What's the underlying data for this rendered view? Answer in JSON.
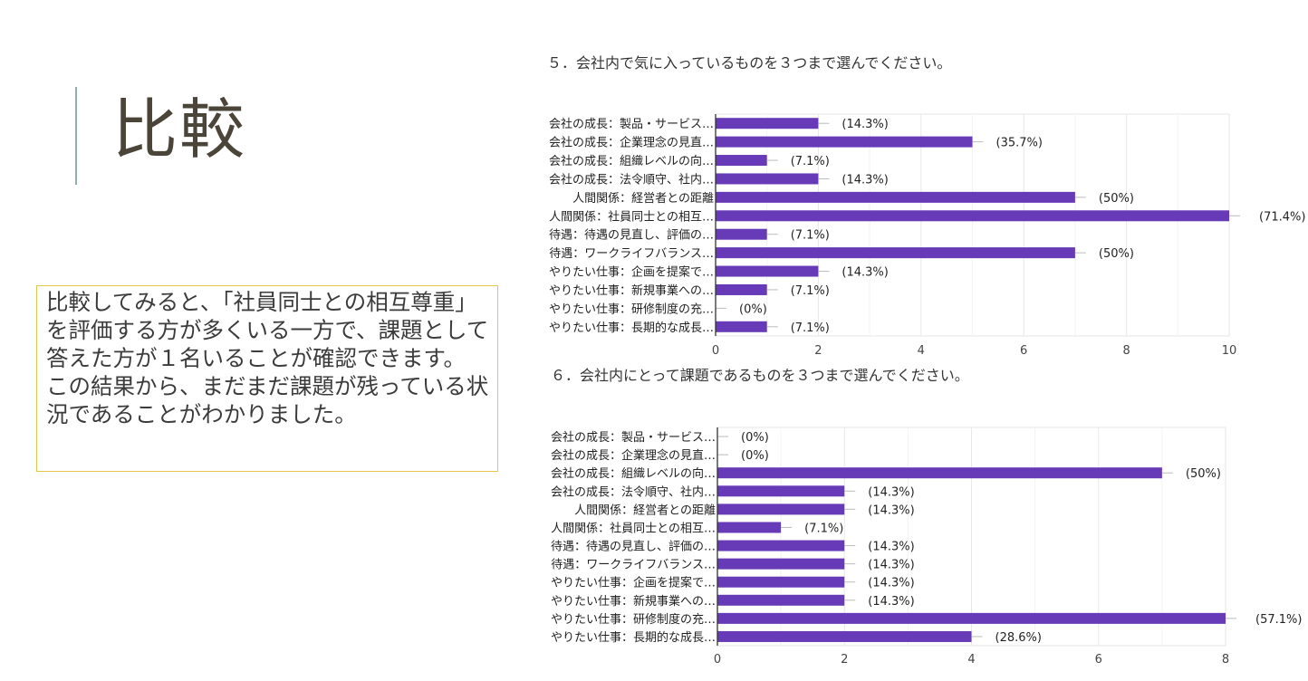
{
  "slide": {
    "title": "比較",
    "note": "比較してみると、「社員同士との相互尊重」を評価する方が多くいる一方で、課題として答えた方が１名いることが確認できます。\nこの結果から、まだまだ課題が残っている状況であることがわかりました。",
    "accent_color": "#8fb0b4",
    "note_border_color": "#e3c548"
  },
  "chart_data": [
    {
      "type": "bar",
      "orientation": "horizontal",
      "title": "５．会社内で気に入っているものを３つまで選んでください。",
      "categories": [
        "会社の成長：製品・サービス…",
        "会社の成長：企業理念の見直…",
        "会社の成長：組織レベルの向…",
        "会社の成長：法令順守、社内…",
        "人間関係：経営者との距離",
        "人間関係：社員同士との相互…",
        "待遇：待遇の見直し、評価の…",
        "待遇：ワークライフバランス…",
        "やりたい仕事：企画を提案で…",
        "やりたい仕事：新規事業への…",
        "やりたい仕事：研修制度の充…",
        "やりたい仕事：長期的な成長…"
      ],
      "values": [
        2,
        5,
        1,
        2,
        7,
        10,
        1,
        7,
        2,
        1,
        0,
        1
      ],
      "data_labels": [
        "(14.3%)",
        "(35.7%)",
        "(7.1%)",
        "(14.3%)",
        "(50%)",
        "(71.4%)",
        "(7.1%)",
        "(50%)",
        "(14.3%)",
        "(7.1%)",
        "(0%)",
        "(7.1%)"
      ],
      "xlim": [
        0,
        10
      ],
      "xticks": [
        0,
        2,
        4,
        6,
        8,
        10
      ],
      "grid": true,
      "bar_color": "#673ab7"
    },
    {
      "type": "bar",
      "orientation": "horizontal",
      "title": "６．会社内にとって課題であるものを３つまで選んでください。",
      "categories": [
        "会社の成長：製品・サービス…",
        "会社の成長：企業理念の見直…",
        "会社の成長：組織レベルの向…",
        "会社の成長：法令順守、社内…",
        "人間関係：経営者との距離",
        "人間関係：社員同士との相互…",
        "待遇：待遇の見直し、評価の…",
        "待遇：ワークライフバランス…",
        "やりたい仕事：企画を提案で…",
        "やりたい仕事：新規事業への…",
        "やりたい仕事：研修制度の充…",
        "やりたい仕事：長期的な成長…"
      ],
      "values": [
        0,
        0,
        7,
        2,
        2,
        1,
        2,
        2,
        2,
        2,
        8,
        4
      ],
      "data_labels": [
        "(0%)",
        "(0%)",
        "(50%)",
        "(14.3%)",
        "(14.3%)",
        "(7.1%)",
        "(14.3%)",
        "(14.3%)",
        "(14.3%)",
        "(14.3%)",
        "(57.1%)",
        "(28.6%)"
      ],
      "xlim": [
        0,
        8
      ],
      "xticks": [
        0,
        2,
        4,
        6,
        8
      ],
      "grid": true,
      "bar_color": "#673ab7"
    }
  ]
}
